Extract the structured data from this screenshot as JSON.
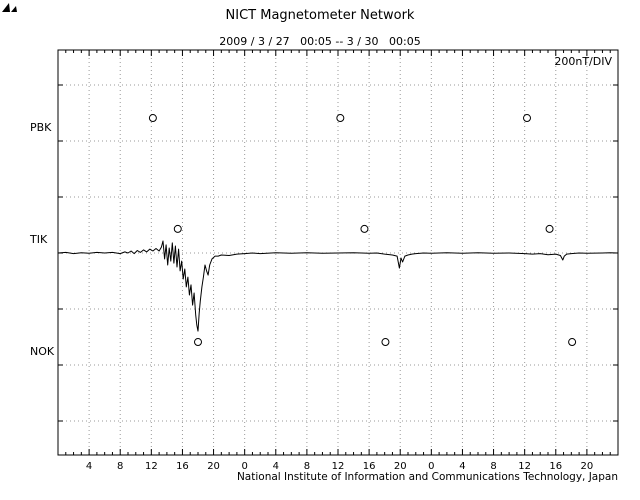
{
  "chart_data": {
    "type": "line",
    "title": "NICT Magnetometer Network",
    "subtitle": "2009 / 3 / 27   00:05 -- 3 / 30   00:05",
    "scale_label": "200nT/DIV",
    "footer": "National Institute of Information and Communications Technology, Japan",
    "nt_per_div": 200,
    "hours_total": 72,
    "x_major_tick_hours": 4,
    "x_minor_tick_hours": 1,
    "grid": "dotted",
    "x_tick_labels": [
      "4",
      "8",
      "12",
      "16",
      "20",
      "0",
      "4",
      "8",
      "12",
      "16",
      "20",
      "0",
      "4",
      "8",
      "12",
      "16",
      "20"
    ],
    "stations": [
      {
        "label": "PBK",
        "baseline_div": 2
      },
      {
        "label": "TIK",
        "baseline_div": 0
      },
      {
        "label": "NOK",
        "baseline_div": -2
      }
    ],
    "markers": [
      {
        "station": "PBK",
        "hour": 12.2,
        "offset_nt": 82
      },
      {
        "station": "PBK",
        "hour": 36.3,
        "offset_nt": 82
      },
      {
        "station": "PBK",
        "hour": 60.3,
        "offset_nt": 82
      },
      {
        "station": "TIK",
        "hour": 15.4,
        "offset_nt": 86
      },
      {
        "station": "TIK",
        "hour": 39.4,
        "offset_nt": 86
      },
      {
        "station": "TIK",
        "hour": 63.2,
        "offset_nt": 86
      },
      {
        "station": "NOK",
        "hour": 18.0,
        "offset_nt": 82
      },
      {
        "station": "NOK",
        "hour": 42.1,
        "offset_nt": 82
      },
      {
        "station": "NOK",
        "hour": 66.1,
        "offset_nt": 82
      }
    ],
    "series": [
      {
        "name": "TIK magnetogram (H component, nT offset)",
        "points": [
          [
            0,
            0
          ],
          [
            1,
            2
          ],
          [
            2,
            -2
          ],
          [
            3,
            1
          ],
          [
            4,
            -1
          ],
          [
            5,
            2
          ],
          [
            6,
            0
          ],
          [
            7,
            2
          ],
          [
            8,
            -2
          ],
          [
            8.6,
            4
          ],
          [
            9,
            0
          ],
          [
            9.4,
            7
          ],
          [
            9.8,
            -2
          ],
          [
            10.2,
            9
          ],
          [
            10.6,
            2
          ],
          [
            11,
            11
          ],
          [
            11.4,
            4
          ],
          [
            11.8,
            14
          ],
          [
            12.2,
            7
          ],
          [
            12.6,
            16
          ],
          [
            13,
            7
          ],
          [
            13.3,
            21
          ],
          [
            13.5,
            43
          ],
          [
            13.7,
            -21
          ],
          [
            13.9,
            29
          ],
          [
            14.1,
            -43
          ],
          [
            14.3,
            18
          ],
          [
            14.5,
            -29
          ],
          [
            14.7,
            36
          ],
          [
            14.9,
            -36
          ],
          [
            15.1,
            25
          ],
          [
            15.3,
            -50
          ],
          [
            15.5,
            14
          ],
          [
            15.7,
            -64
          ],
          [
            15.9,
            -29
          ],
          [
            16.1,
            -93
          ],
          [
            16.3,
            -57
          ],
          [
            16.5,
            -121
          ],
          [
            16.7,
            -86
          ],
          [
            16.9,
            -150
          ],
          [
            17.1,
            -114
          ],
          [
            17.3,
            -186
          ],
          [
            17.5,
            -143
          ],
          [
            17.7,
            -221
          ],
          [
            17.85,
            -257
          ],
          [
            18,
            -279
          ],
          [
            18.15,
            -214
          ],
          [
            18.3,
            -171
          ],
          [
            18.5,
            -121
          ],
          [
            18.7,
            -86
          ],
          [
            18.9,
            -43
          ],
          [
            19.1,
            -64
          ],
          [
            19.3,
            -79
          ],
          [
            19.5,
            -43
          ],
          [
            19.8,
            -21
          ],
          [
            20.2,
            -11
          ],
          [
            20.6,
            -11
          ],
          [
            21,
            -7
          ],
          [
            22,
            -9
          ],
          [
            23,
            -4
          ],
          [
            24,
            -2
          ],
          [
            25,
            0
          ],
          [
            26,
            -2
          ],
          [
            28,
            1
          ],
          [
            30,
            -1
          ],
          [
            32,
            1
          ],
          [
            34,
            -1
          ],
          [
            36,
            0
          ],
          [
            38,
            1
          ],
          [
            40,
            -1
          ],
          [
            41,
            0
          ],
          [
            42,
            -4
          ],
          [
            43,
            -7
          ],
          [
            43.6,
            -11
          ],
          [
            43.9,
            -54
          ],
          [
            44.1,
            -18
          ],
          [
            44.3,
            -32
          ],
          [
            44.6,
            -11
          ],
          [
            45,
            -7
          ],
          [
            45.5,
            -4
          ],
          [
            46,
            -2
          ],
          [
            47,
            0
          ],
          [
            48,
            -1
          ],
          [
            50,
            1
          ],
          [
            52,
            -1
          ],
          [
            54,
            1
          ],
          [
            56,
            -1
          ],
          [
            58,
            0
          ],
          [
            60,
            -2
          ],
          [
            61,
            -4
          ],
          [
            62,
            -2
          ],
          [
            63,
            -6
          ],
          [
            64,
            -4
          ],
          [
            64.6,
            -9
          ],
          [
            64.9,
            -25
          ],
          [
            65.1,
            -11
          ],
          [
            65.4,
            -4
          ],
          [
            66,
            -2
          ],
          [
            67,
            0
          ],
          [
            68,
            -1
          ],
          [
            70,
            0
          ],
          [
            71,
            1
          ],
          [
            72,
            0
          ]
        ]
      }
    ],
    "colors": {
      "trace": "#000000",
      "grid": "#999999",
      "frame": "#000000"
    }
  }
}
